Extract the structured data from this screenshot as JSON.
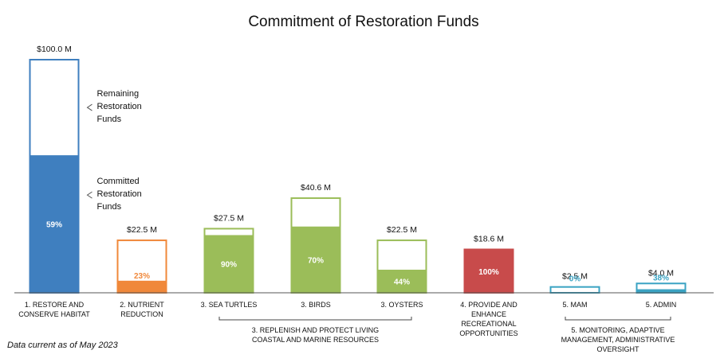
{
  "chart_data": {
    "type": "bar",
    "title": "Commitment of Restoration Funds",
    "value_unit": "$M",
    "categories": [
      [
        "1. RESTORE AND",
        "CONSERVE HABITAT"
      ],
      [
        "2. NUTRIENT",
        "REDUCTION"
      ],
      [
        "3. SEA TURTLES"
      ],
      [
        "3. BIRDS"
      ],
      [
        "3. OYSTERS"
      ],
      [
        "4. PROVIDE AND",
        "ENHANCE",
        "RECREATIONAL",
        "OPPORTUNITIES"
      ],
      [
        "5. MAM"
      ],
      [
        "5. ADMIN"
      ]
    ],
    "totals": [
      100.0,
      22.5,
      27.5,
      40.6,
      22.5,
      18.6,
      2.5,
      4.0
    ],
    "total_labels": [
      "$100.0 M",
      "$22.5 M",
      "$27.5 M",
      "$40.6 M",
      "$22.5 M",
      "$18.6 M",
      "$2.5 M",
      "$4.0 M"
    ],
    "committed_pct": [
      59,
      23,
      90,
      70,
      44,
      100,
      0,
      38
    ],
    "pct_labels": [
      "59%",
      "23%",
      "90%",
      "70%",
      "44%",
      "100%",
      "0%",
      "38%"
    ],
    "series": [
      {
        "name": "Committed Restoration Funds"
      },
      {
        "name": "Remaining Restoration Funds"
      }
    ],
    "colors": [
      "#3f7fbf",
      "#f0883a",
      "#9bbd59",
      "#9bbd59",
      "#9bbd59",
      "#c84b4b",
      "#3aa3c3",
      "#3aa3c3"
    ],
    "groups": [
      {
        "label": [
          "3. REPLENISH AND PROTECT LIVING",
          "COASTAL AND MARINE RESOURCES"
        ],
        "from": 2,
        "to": 4
      },
      {
        "label": [
          "5. MONITORING, ADAPTIVE",
          "MANAGEMENT, ADMINISTRATIVE",
          "OVERSIGHT"
        ],
        "from": 6,
        "to": 7
      }
    ],
    "annotations": [
      {
        "lines": [
          "Remaining",
          "Restoration",
          "Funds"
        ],
        "target": "remaining"
      },
      {
        "lines": [
          "Committed",
          "Restoration",
          "Funds"
        ],
        "target": "committed"
      }
    ]
  },
  "footnote": "Data current as of May 2023"
}
